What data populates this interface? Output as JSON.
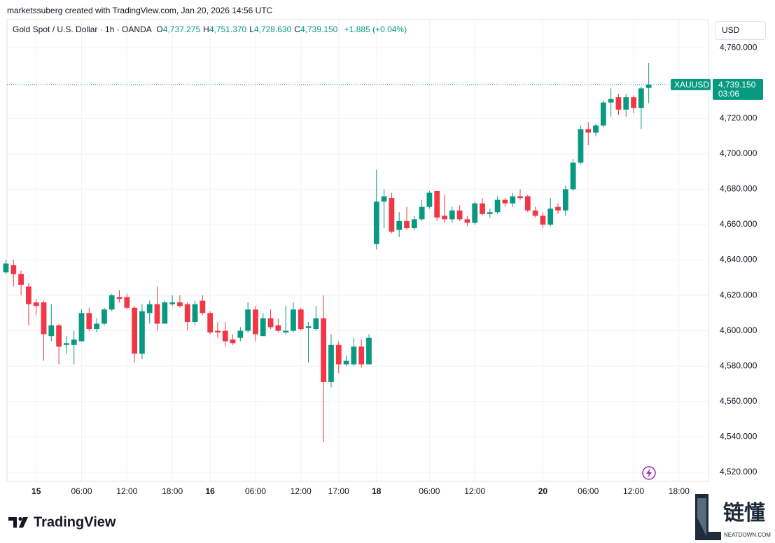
{
  "header": {
    "credit": "marketssuberg created with TradingView.com, Jan 20, 2026 14:56 UTC",
    "symbol": "Gold Spot / U.S. Dollar · 1h · OANDA",
    "ohlc": [
      {
        "key": "O",
        "value": "4,737.275"
      },
      {
        "key": "H",
        "value": "4,751.370"
      },
      {
        "key": "L",
        "value": "4,728.630"
      },
      {
        "key": "C",
        "value": "4,739.150"
      }
    ],
    "change": "+1.885 (+0.04%)",
    "currency": "USD"
  },
  "chart_data": {
    "type": "candlestick",
    "up_color": "#089981",
    "down_color": "#f23645",
    "grid": true,
    "open": [
      4633,
      4637,
      4632,
      4625,
      4616,
      4616,
      4597,
      4603,
      4592,
      4592,
      4594,
      4610,
      4601,
      4604,
      4612,
      4619,
      4619,
      4613,
      4587,
      4610,
      4615,
      4604,
      4615,
      4616,
      4615,
      4605,
      4617,
      4610,
      4600,
      4600,
      4595,
      4596,
      4600,
      4612,
      4597,
      4607,
      4603,
      4599,
      4600,
      4612,
      4601.5,
      4601,
      4607,
      4571,
      4592,
      4581,
      4581,
      4591,
      4581,
      4649,
      4673,
      4675,
      4657,
      4662,
      4658,
      4663,
      4670,
      4679,
      4665,
      4663,
      4668,
      4663,
      4661,
      4672,
      4666,
      4667,
      4674,
      4672,
      4676,
      4676,
      4668,
      4665,
      4660,
      4670,
      4668,
      4680,
      4695,
      4714,
      4712,
      4716,
      4729,
      4732,
      4725,
      4732,
      4726,
      4737.275
    ],
    "high": [
      4640,
      4640,
      4634,
      4627,
      4618,
      4617,
      4615,
      4604,
      4597,
      4600,
      4612,
      4613,
      4607,
      4613,
      4621,
      4623,
      4621,
      4614,
      4615,
      4617,
      4625,
      4617,
      4620,
      4620,
      4616,
      4617,
      4620,
      4611,
      4605,
      4605,
      4598,
      4602,
      4616,
      4614,
      4610,
      4612,
      4607,
      4614,
      4616,
      4613,
      4605,
      4614,
      4620,
      4598,
      4594,
      4586,
      4596,
      4595,
      4598,
      4691,
      4680,
      4678,
      4667,
      4670,
      4665,
      4674,
      4679,
      4679,
      4677,
      4670,
      4671,
      4665,
      4673,
      4675,
      4669,
      4676,
      4675,
      4678,
      4680,
      4677,
      4670,
      4667,
      4675,
      4672,
      4682,
      4697,
      4716,
      4718,
      4717,
      4730,
      4737,
      4734,
      4734,
      4733,
      4738,
      4751.37
    ],
    "low": [
      4632,
      4625,
      4620,
      4603,
      4609,
      4583,
      4594,
      4581,
      4587,
      4581,
      4594,
      4600,
      4599,
      4603,
      4611,
      4616,
      4612,
      4582,
      4584,
      4604,
      4600,
      4604,
      4614,
      4613,
      4600,
      4603,
      4609,
      4598,
      4596,
      4591,
      4592,
      4594,
      4599,
      4594,
      4597,
      4601,
      4599,
      4598,
      4599,
      4600,
      4582,
      4600,
      4537,
      4568,
      4576,
      4580,
      4580,
      4579,
      4581,
      4646,
      4658,
      4655,
      4653,
      4657,
      4657,
      4662,
      4669,
      4662,
      4661,
      4661,
      4662,
      4659,
      4660,
      4665,
      4664,
      4666,
      4670,
      4670,
      4674,
      4667,
      4664,
      4658,
      4659,
      4666,
      4665,
      4679,
      4694,
      4705,
      4710,
      4715,
      4721,
      4722,
      4721,
      4723,
      4714,
      4728.63
    ],
    "close": [
      4638,
      4632,
      4626,
      4615,
      4614,
      4598,
      4603,
      4591,
      4593,
      4595,
      4610,
      4601,
      4604,
      4612,
      4620,
      4618,
      4613,
      4587,
      4611,
      4615,
      4604,
      4616,
      4616,
      4614,
      4605,
      4615,
      4610,
      4599,
      4599,
      4594,
      4593,
      4600,
      4612,
      4598,
      4607,
      4602,
      4600,
      4600,
      4612,
      4601,
      4602.5,
      4607,
      4571,
      4592,
      4581,
      4583,
      4591,
      4581,
      4596,
      4673,
      4676,
      4656,
      4662,
      4658,
      4663,
      4670,
      4678,
      4664,
      4663,
      4668,
      4663,
      4661,
      4672,
      4666,
      4667,
      4674,
      4672,
      4676,
      4675,
      4668,
      4665,
      4660,
      4669,
      4668,
      4680,
      4695,
      4714,
      4712,
      4716,
      4729,
      4731,
      4725,
      4732,
      4726,
      4737,
      4739.15
    ],
    "xlim": [
      0.14,
      92.9
    ],
    "xticks": [
      {
        "value": 4,
        "label": "15",
        "major": true
      },
      {
        "value": 10,
        "label": "06:00"
      },
      {
        "value": 16,
        "label": "12:00"
      },
      {
        "value": 22,
        "label": "18:00"
      },
      {
        "value": 27,
        "label": "16",
        "major": true
      },
      {
        "value": 33,
        "label": "06:00"
      },
      {
        "value": 39,
        "label": "12:00"
      },
      {
        "value": 44,
        "label": "17:00"
      },
      {
        "value": 49,
        "label": "18",
        "major": true
      },
      {
        "value": 56,
        "label": "06:00"
      },
      {
        "value": 62,
        "label": "12:00"
      },
      {
        "value": 71,
        "label": "20",
        "major": true
      },
      {
        "value": 77,
        "label": "06:00"
      },
      {
        "value": 83,
        "label": "12:00"
      },
      {
        "value": 89,
        "label": "18:00"
      }
    ],
    "ylim": [
      4514.8,
      4775.9
    ],
    "yticks": [
      {
        "value": 4520,
        "label": "4,520.000"
      },
      {
        "value": 4540,
        "label": "4,540.000"
      },
      {
        "value": 4560,
        "label": "4,560.000"
      },
      {
        "value": 4580,
        "label": "4,580.000"
      },
      {
        "value": 4600,
        "label": "4,600.000"
      },
      {
        "value": 4620,
        "label": "4,620.000"
      },
      {
        "value": 4640,
        "label": "4,640.000"
      },
      {
        "value": 4660,
        "label": "4,660.000"
      },
      {
        "value": 4680,
        "label": "4,680.000"
      },
      {
        "value": 4700,
        "label": "4,700.000"
      },
      {
        "value": 4720,
        "label": "4,720.000"
      },
      {
        "value": 4740,
        "label": "4,740.000"
      },
      {
        "value": 4760,
        "label": "4,760.000"
      }
    ],
    "last_price": {
      "symbol": "XAUUSD",
      "value": 4739.15,
      "value_label": "4,739.150",
      "countdown": "03:06"
    }
  },
  "footer": {
    "brand": "TradingView",
    "watermark": "链懂",
    "watermark_sub": "NEATDOWN.COM"
  }
}
